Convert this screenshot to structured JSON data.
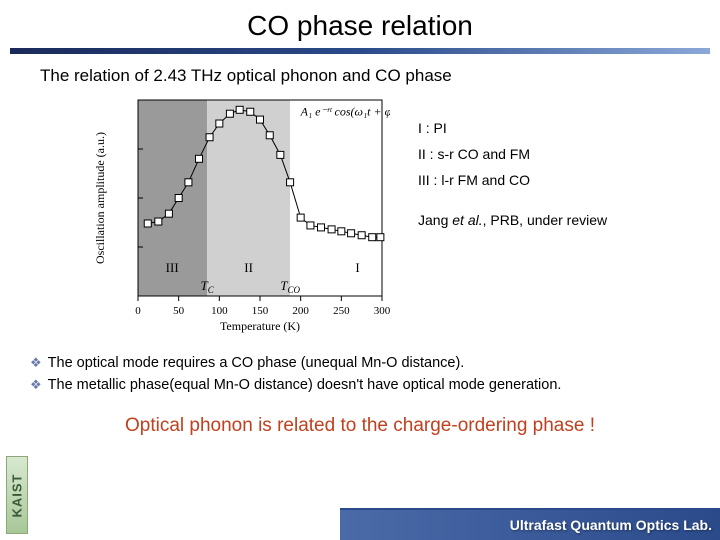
{
  "title": "CO phase relation",
  "subtitle": "The relation of 2.43 THz optical phonon and CO phase",
  "legend": {
    "i": "I : PI",
    "ii": "II : s-r CO and FM",
    "iii": "III : l-r FM and CO"
  },
  "citation_jang": "Jang",
  "citation_etal": " et al.",
  "citation_rest": ", PRB, under review",
  "bullets": {
    "b1": "The optical mode requires a CO phase (unequal Mn-O distance).",
    "b2": "The metallic phase(equal Mn-O distance) doesn't have optical mode generation."
  },
  "conclusion": "Optical phonon is related to the charge-ordering phase !",
  "kaist": "KAIST",
  "footer": "Ultrafast Quantum Optics Lab.",
  "chart": {
    "type": "scatter-line",
    "xlim": [
      0,
      300
    ],
    "ylim": [
      0,
      1
    ],
    "xticks": [
      0,
      50,
      100,
      150,
      200,
      250,
      300
    ],
    "xlabel": "Temperature (K)",
    "ylabel": "Oscillation amplitude (a.u.)",
    "region_bounds_x": [
      0,
      85,
      187,
      300
    ],
    "region_colors": [
      "#9a9a9a",
      "#d0d0d0",
      "#ffffff"
    ],
    "region_labels": [
      "III",
      "II",
      "I"
    ],
    "tc_label": "T",
    "tc_sub": "C",
    "tco_label": "T",
    "tco_sub": "CO",
    "tc_x": 85,
    "tco_x": 187,
    "marker": "open-square",
    "marker_size": 7,
    "line_color": "#000000",
    "marker_edge": "#000000",
    "marker_fill": "#ffffff",
    "background_color": "#ffffff",
    "data": [
      [
        12,
        0.37
      ],
      [
        25,
        0.38
      ],
      [
        38,
        0.42
      ],
      [
        50,
        0.5
      ],
      [
        62,
        0.58
      ],
      [
        75,
        0.7
      ],
      [
        88,
        0.81
      ],
      [
        100,
        0.88
      ],
      [
        113,
        0.93
      ],
      [
        125,
        0.95
      ],
      [
        138,
        0.94
      ],
      [
        150,
        0.9
      ],
      [
        162,
        0.82
      ],
      [
        175,
        0.72
      ],
      [
        187,
        0.58
      ],
      [
        200,
        0.4
      ],
      [
        212,
        0.36
      ],
      [
        225,
        0.35
      ],
      [
        238,
        0.34
      ],
      [
        250,
        0.33
      ],
      [
        262,
        0.32
      ],
      [
        275,
        0.31
      ],
      [
        288,
        0.3
      ],
      [
        298,
        0.3
      ]
    ],
    "formula": "A₁ e⁻ʳᵗ cos(ω₁t + φ₁)",
    "axis_fontsize": 12,
    "tick_fontsize": 11
  }
}
